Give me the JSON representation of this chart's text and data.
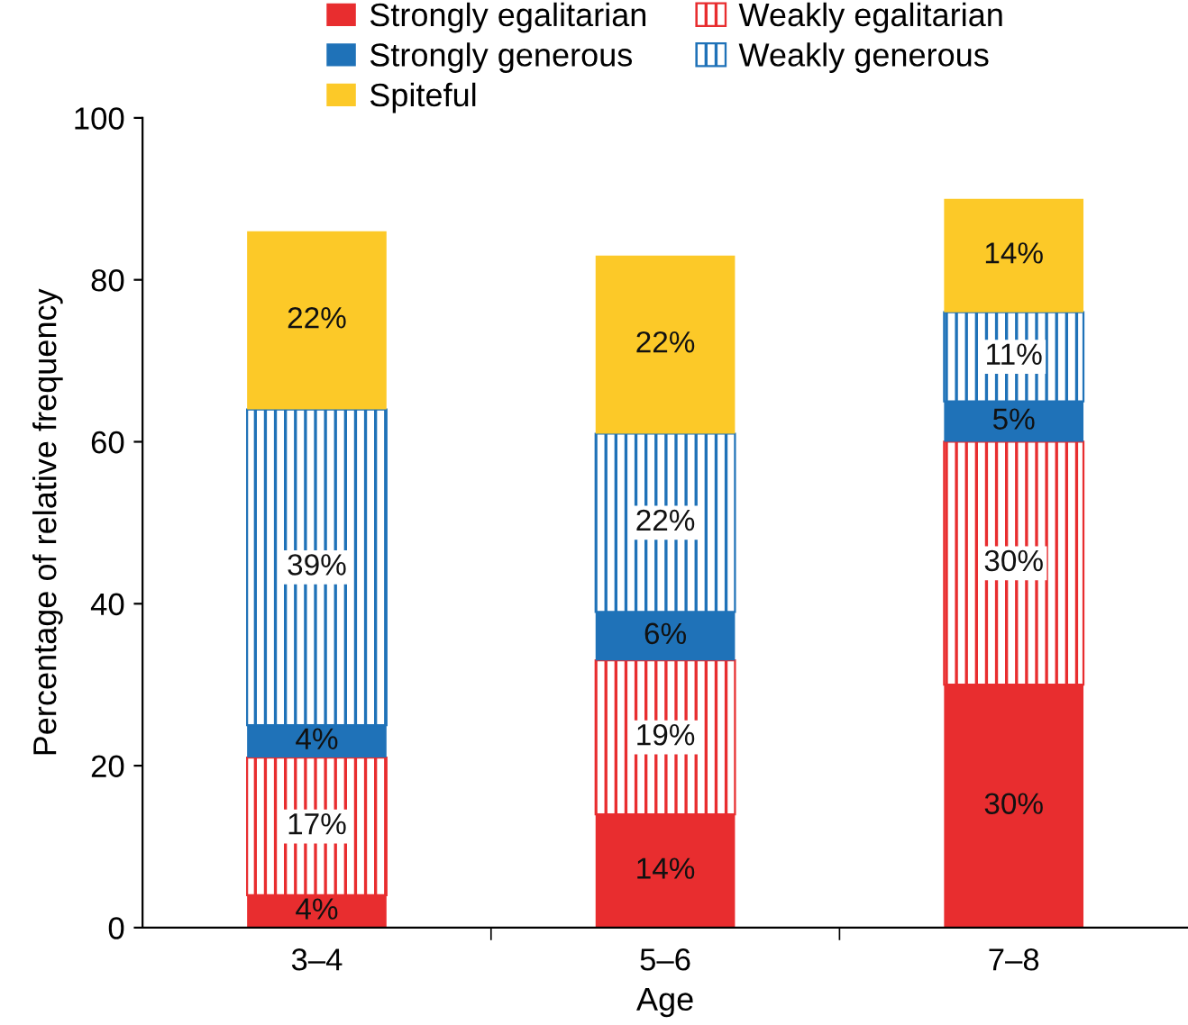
{
  "chart_data": {
    "type": "bar",
    "stacked": true,
    "xlabel": "Age",
    "ylabel": "Percentage of relative frequency",
    "categories": [
      "3–4",
      "5–6",
      "7–8"
    ],
    "series": [
      {
        "name": "Strongly egalitarian",
        "color": "#e82d2f",
        "values": [
          4,
          14,
          30
        ],
        "value_labels": [
          "4%",
          "14%",
          "30%"
        ]
      },
      {
        "name": "Weakly egalitarian",
        "color": "#e82d2f",
        "values": [
          17,
          19,
          30
        ],
        "value_labels": [
          "17%",
          "19%",
          "30%"
        ]
      },
      {
        "name": "Strongly generous",
        "color": "#1f72b8",
        "values": [
          4,
          6,
          5
        ],
        "value_labels": [
          "4%",
          "6%",
          "5%"
        ]
      },
      {
        "name": "Weakly generous",
        "color": "#1f72b8",
        "values": [
          39,
          22,
          11
        ],
        "value_labels": [
          "39%",
          "22%",
          "11%"
        ]
      },
      {
        "name": "Spiteful",
        "color": "#fcc928",
        "values": [
          22,
          22,
          14
        ],
        "value_labels": [
          "22%",
          "22%",
          "14%"
        ]
      }
    ],
    "ylim": [
      0,
      100
    ],
    "yticks": [
      0,
      20,
      40,
      60,
      80,
      100
    ],
    "grid": false,
    "legend": "top"
  }
}
